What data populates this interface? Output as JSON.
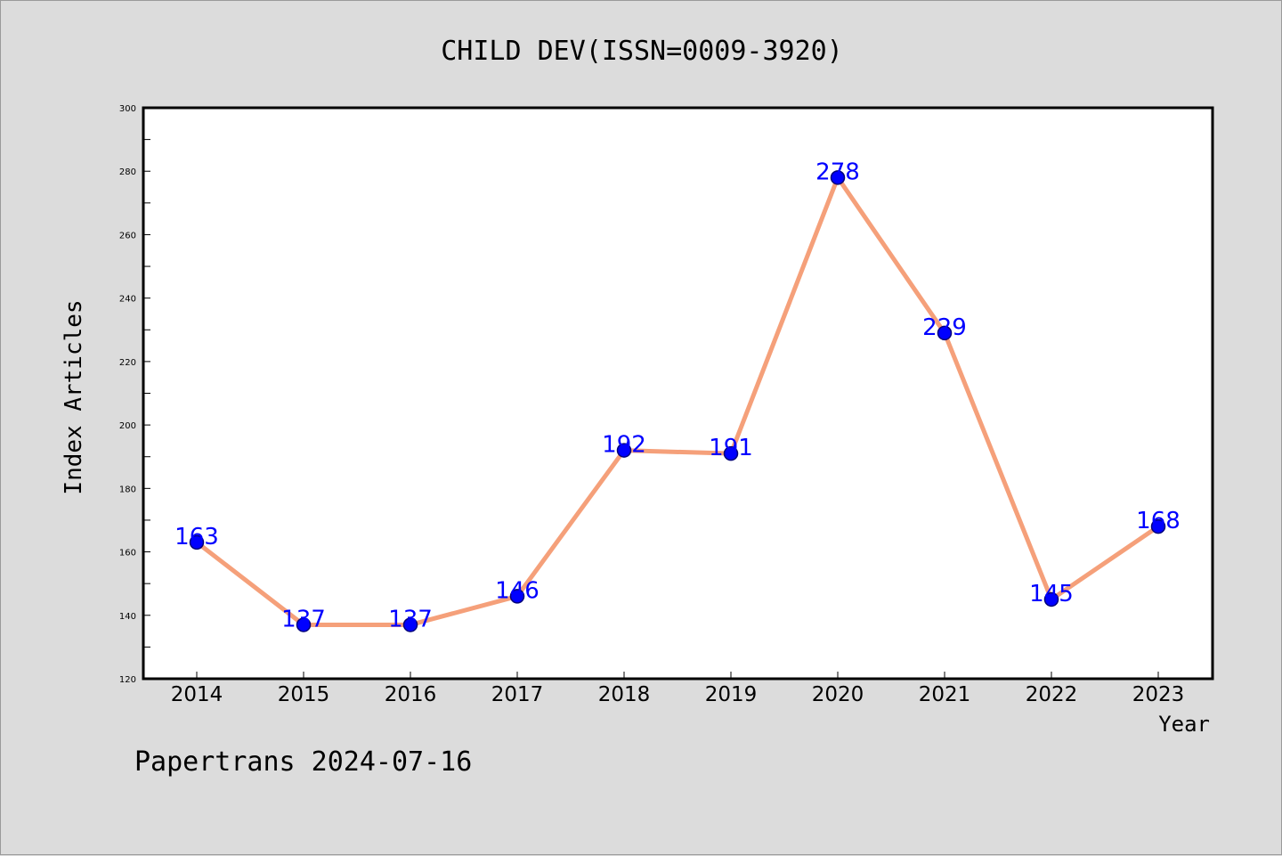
{
  "chart_data": {
    "type": "line",
    "title": "CHILD DEV(ISSN=0009-3920)",
    "xlabel": "Year",
    "ylabel": "Index Articles",
    "categories": [
      "2014",
      "2015",
      "2016",
      "2017",
      "2018",
      "2019",
      "2020",
      "2021",
      "2022",
      "2023"
    ],
    "series": [
      {
        "values": [
          163,
          137,
          137,
          146,
          192,
          191,
          278,
          229,
          145,
          168
        ]
      }
    ],
    "ylim": [
      120,
      300
    ],
    "yticks": [
      120,
      140,
      160,
      180,
      200,
      220,
      240,
      260,
      280,
      300
    ],
    "grid": false,
    "data_labels": true,
    "colors": {
      "line": "#f5a07a",
      "marker": "#0000ff",
      "label": "#0000ff"
    }
  },
  "footer": {
    "text": "Papertrans 2024-07-16"
  }
}
